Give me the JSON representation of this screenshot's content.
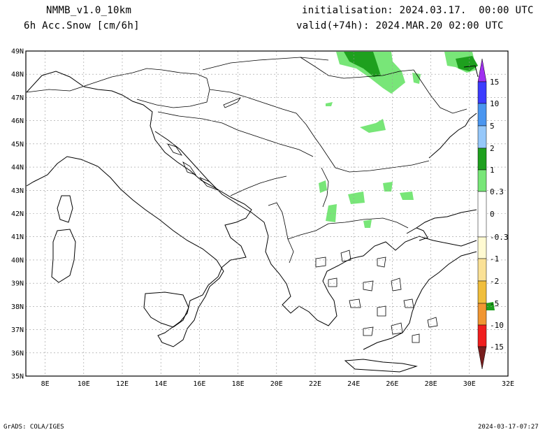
{
  "header": {
    "model": "NMMB_v1.0_10km",
    "field": "6h Acc.Snow [cm/6h]",
    "init": "initialisation: 2024.03.17.  00:00 UTC",
    "valid": "valid(+74h): 2024.MAR.20 02:00 UTC"
  },
  "footer": {
    "credit": "GrADS: COLA/IGES",
    "timestamp": "2024-03-17-07:27"
  },
  "map": {
    "lat_labels": [
      "49N",
      "48N",
      "47N",
      "46N",
      "45N",
      "44N",
      "43N",
      "42N",
      "41N",
      "40N",
      "39N",
      "38N",
      "37N",
      "36N",
      "35N"
    ],
    "lon_labels": [
      "8E",
      "10E",
      "12E",
      "14E",
      "16E",
      "18E",
      "20E",
      "22E",
      "24E",
      "26E",
      "28E",
      "30E",
      "32E"
    ],
    "lat_range": [
      35,
      49
    ],
    "lon_range": [
      7,
      32
    ],
    "grid": "dotted"
  },
  "colorbar": {
    "labels": [
      "15",
      "10",
      "5",
      "2",
      "1",
      "0.3",
      "0",
      "-0.3",
      "-1",
      "-2",
      "-5",
      "-10",
      "-15"
    ],
    "colors": {
      "top_arrow": "#a030f0",
      "c_10_15": "#3c3cff",
      "c_5_10": "#4a96f0",
      "c_2_5": "#96c8fa",
      "c_1_2": "#1ea01e",
      "c_03_1": "#78e678",
      "c_neg_03": "#fffad2",
      "c_neg_1": "#fae196",
      "c_neg_2": "#f0be3c",
      "c_neg_5": "#f09632",
      "c_neg_10": "#f01e1e",
      "c_neg_15": "#be0000",
      "bottom_arrow": "#781e1e"
    }
  }
}
